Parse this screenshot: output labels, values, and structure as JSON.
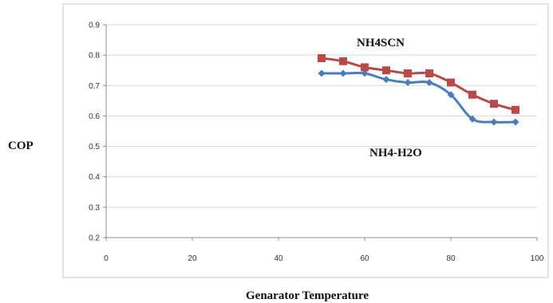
{
  "chart_data": {
    "type": "line",
    "title": "",
    "xlabel": "Genarator Temperature",
    "ylabel": "COP",
    "xlim": [
      0,
      100
    ],
    "ylim": [
      0.2,
      0.9
    ],
    "x_ticks": [
      "0",
      "20",
      "40",
      "60",
      "80",
      "100"
    ],
    "y_ticks": [
      "0.2",
      "0.3",
      "0.4",
      "0.5",
      "0.6",
      "0.7",
      "0.8",
      "0.9"
    ],
    "grid": "horizontal",
    "legend": "none",
    "series": [
      {
        "name": "NH4SCN",
        "color": "#b84a4a",
        "marker": "square",
        "x": [
          50,
          55,
          60,
          65,
          70,
          75,
          80,
          85,
          90,
          95
        ],
        "values": [
          0.79,
          0.78,
          0.76,
          0.75,
          0.74,
          0.74,
          0.71,
          0.67,
          0.64,
          0.62
        ]
      },
      {
        "name": "NH4-H2O",
        "color": "#4a7ebb",
        "marker": "diamond",
        "x": [
          50,
          55,
          60,
          65,
          70,
          75,
          80,
          85,
          90,
          95
        ],
        "values": [
          0.74,
          0.74,
          0.74,
          0.72,
          0.71,
          0.71,
          0.67,
          0.59,
          0.58,
          0.58
        ]
      }
    ]
  }
}
